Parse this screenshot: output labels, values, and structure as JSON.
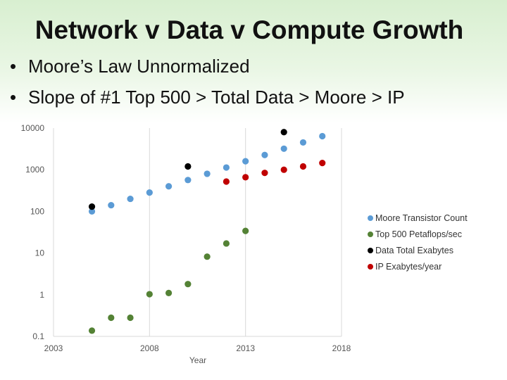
{
  "slide": {
    "title": "Network v Data v Compute Growth",
    "bullets": [
      "Moore’s Law Unnormalized",
      "Slope of #1 Top 500 > Total Data > Moore > IP"
    ]
  },
  "chart_data": {
    "type": "scatter",
    "xlabel": "Year",
    "ylabel": "",
    "title": "",
    "xlim": [
      2003,
      2018
    ],
    "ylim": [
      0.1,
      10000
    ],
    "yscale": "log",
    "x_ticks": [
      2003,
      2008,
      2013,
      2018
    ],
    "y_ticks": [
      {
        "value": 0.1,
        "label": "0.1"
      },
      {
        "value": 1,
        "label": "1"
      },
      {
        "value": 10,
        "label": "10"
      },
      {
        "value": 100,
        "label": "100"
      },
      {
        "value": 1000,
        "label": "1000"
      },
      {
        "value": 10000,
        "label": "10000"
      }
    ],
    "grid": false,
    "legend_position": "right",
    "series": [
      {
        "name": "Moore Transistor Count",
        "color": "#5b9bd5",
        "x": [
          2005,
          2006,
          2007,
          2008,
          2009,
          2010,
          2011,
          2012,
          2013,
          2014,
          2015,
          2016,
          2017
        ],
        "y": [
          100,
          141,
          200,
          283,
          400,
          566,
          800,
          1130,
          1600,
          2260,
          3200,
          4520,
          6400
        ]
      },
      {
        "name": "Top 500 Petaflops/sec",
        "color": "#548235",
        "x": [
          2005,
          2006,
          2007,
          2008,
          2009,
          2010,
          2011,
          2012,
          2013
        ],
        "y": [
          0.137,
          0.28,
          0.28,
          1.03,
          1.1,
          1.8,
          8.2,
          17,
          34
        ]
      },
      {
        "name": "Data Total Exabytes",
        "color": "#000000",
        "x": [
          2005,
          2010,
          2015
        ],
        "y": [
          130,
          1200,
          8000
        ]
      },
      {
        "name": "IP Exabytes/year",
        "color": "#c00000",
        "x": [
          2012,
          2013,
          2014,
          2015,
          2016,
          2017
        ],
        "y": [
          520,
          660,
          840,
          1000,
          1200,
          1450
        ]
      }
    ]
  }
}
